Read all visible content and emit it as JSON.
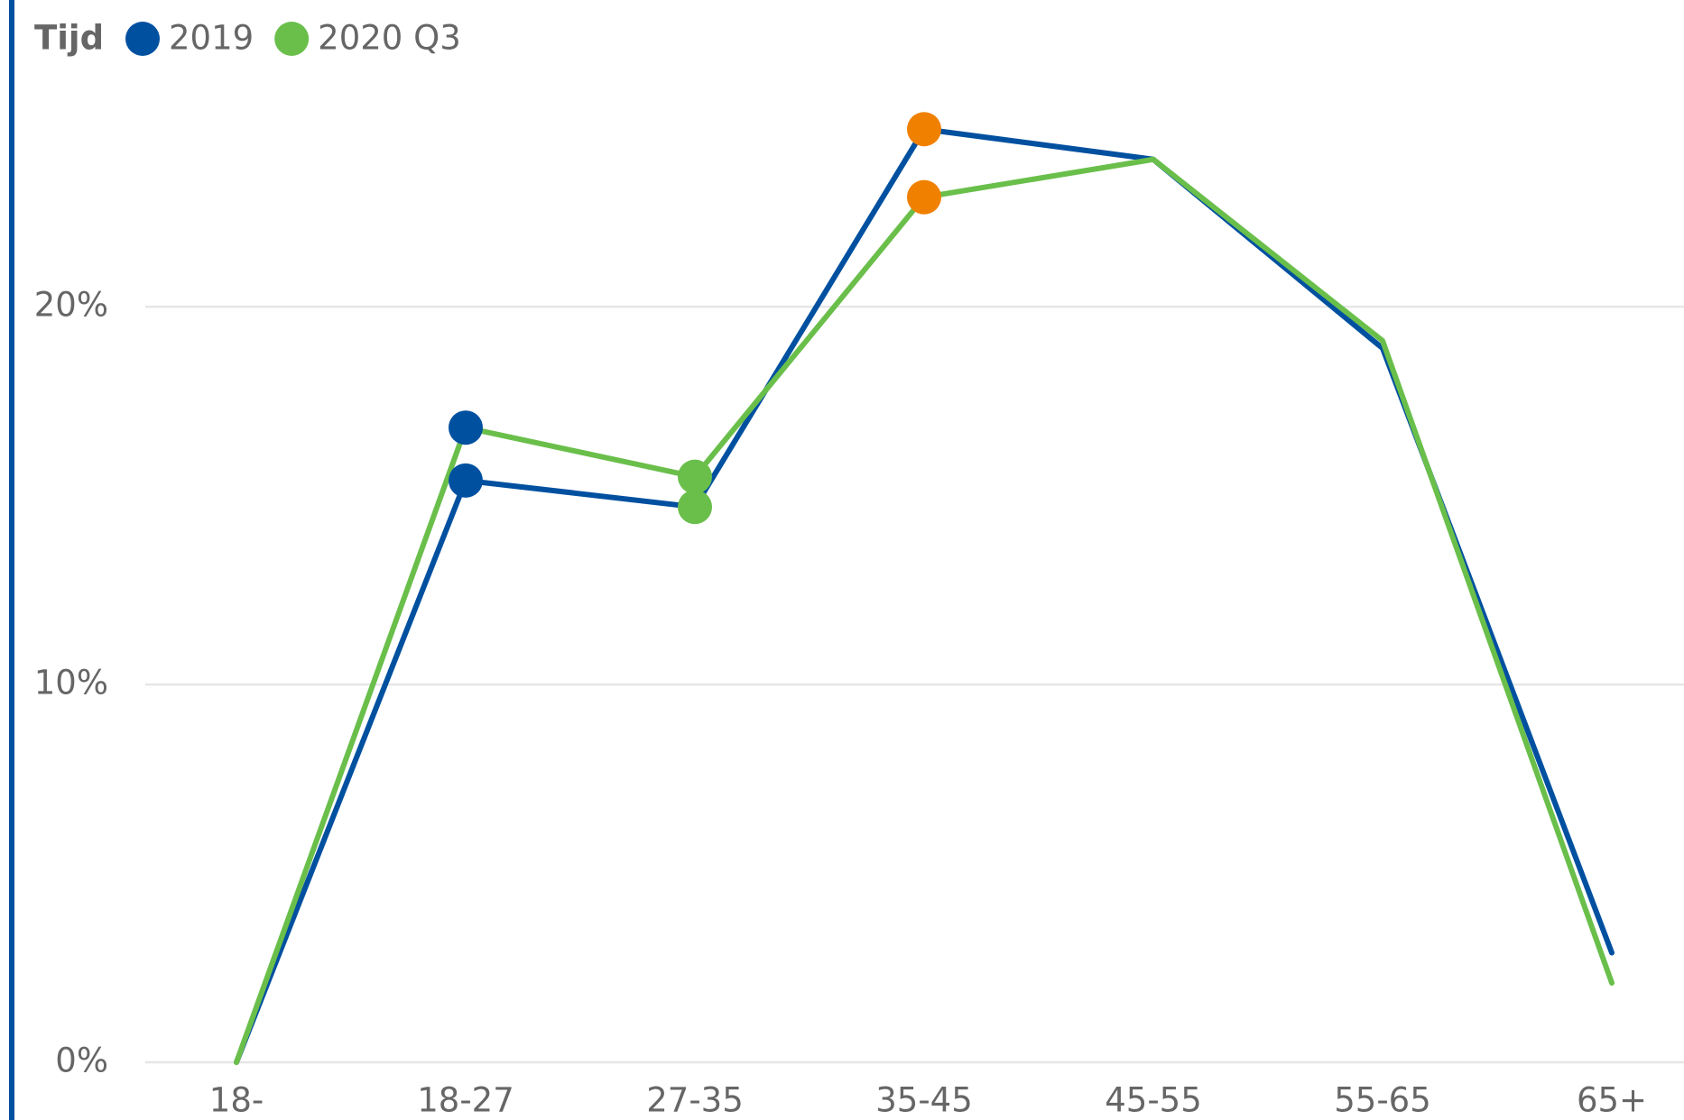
{
  "chart_data": {
    "type": "line",
    "legend_title": "Tijd",
    "categories": [
      "18-",
      "18-27",
      "27-35",
      "35-45",
      "45-55",
      "55-65",
      "65+"
    ],
    "series": [
      {
        "name": "2019",
        "color": "#0050a0",
        "values": [
          0,
          15.4,
          14.7,
          24.7,
          23.9,
          18.9,
          2.9
        ],
        "marker_colors": [
          null,
          "#0050a0",
          "#6abf4b",
          "#f08000",
          null,
          null,
          null
        ]
      },
      {
        "name": "2020 Q3",
        "color": "#6abf4b",
        "values": [
          0,
          16.8,
          15.5,
          22.9,
          23.9,
          19.1,
          2.1
        ],
        "marker_colors": [
          null,
          "#0050a0",
          "#6abf4b",
          "#f08000",
          null,
          null,
          null
        ]
      }
    ],
    "ylim": [
      0,
      28
    ],
    "yticks": [
      {
        "value": 0,
        "label": "0%"
      },
      {
        "value": 10,
        "label": "10%"
      },
      {
        "value": 20,
        "label": "20%"
      }
    ],
    "grid": true
  }
}
